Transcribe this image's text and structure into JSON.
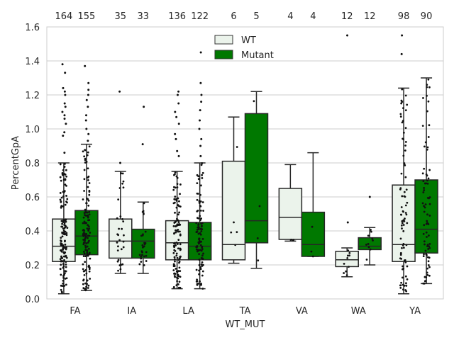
{
  "chart_data": {
    "type": "box",
    "xlabel": "WT_MUT",
    "ylabel": "PercentGpA",
    "ylim": [
      0,
      1.6
    ],
    "yticks": [
      "0.0",
      "0.2",
      "0.4",
      "0.6",
      "0.8",
      "1.0",
      "1.2",
      "1.4",
      "1.6"
    ],
    "grid": true,
    "legend_position": "top-center",
    "categories": [
      "FA",
      "IA",
      "LA",
      "TA",
      "VA",
      "WA",
      "YA"
    ],
    "series": [
      {
        "name": "WT",
        "color": "#ebf3eb",
        "counts": [
          "164",
          "35",
          "136",
          "6",
          "4",
          "12",
          "98"
        ],
        "boxes": [
          {
            "q1": 0.22,
            "median": 0.31,
            "q3": 0.47,
            "whislo": 0.03,
            "whishi": 0.8,
            "fliers": [
              0.86,
              0.96,
              0.98,
              1.03,
              1.06,
              1.08,
              1.1,
              1.13,
              1.15,
              1.2,
              1.22,
              1.24,
              1.33,
              1.38
            ]
          },
          {
            "q1": 0.24,
            "median": 0.34,
            "q3": 0.47,
            "whislo": 0.15,
            "whishi": 0.75,
            "fliers": [
              0.8,
              1.22
            ]
          },
          {
            "q1": 0.23,
            "median": 0.33,
            "q3": 0.46,
            "whislo": 0.06,
            "whishi": 0.75,
            "fliers": [
              0.84,
              0.87,
              0.94,
              0.97,
              1.03,
              1.07,
              1.1,
              1.15,
              1.2,
              1.22
            ]
          },
          {
            "q1": 0.23,
            "median": 0.32,
            "q3": 0.81,
            "whislo": 0.21,
            "whishi": 1.07,
            "fliers": []
          },
          {
            "q1": 0.35,
            "median": 0.48,
            "q3": 0.65,
            "whislo": 0.34,
            "whishi": 0.79,
            "fliers": []
          },
          {
            "q1": 0.19,
            "median": 0.23,
            "q3": 0.28,
            "whislo": 0.13,
            "whishi": 0.3,
            "fliers": [
              0.45,
              1.55
            ]
          },
          {
            "q1": 0.22,
            "median": 0.32,
            "q3": 0.67,
            "whislo": 0.03,
            "whishi": 1.24,
            "fliers": [
              1.44,
              1.55
            ]
          }
        ]
      },
      {
        "name": "Mutant",
        "color": "#007800",
        "counts": [
          "155",
          "33",
          "122",
          "5",
          "4",
          "12",
          "90"
        ],
        "boxes": [
          {
            "q1": 0.26,
            "median": 0.37,
            "q3": 0.52,
            "whislo": 0.05,
            "whishi": 0.91,
            "fliers": [
              0.93,
              0.97,
              1.0,
              1.05,
              1.08,
              1.13,
              1.17,
              1.2,
              1.23,
              1.27,
              1.37
            ]
          },
          {
            "q1": 0.24,
            "median": 0.34,
            "q3": 0.41,
            "whislo": 0.15,
            "whishi": 0.57,
            "fliers": [
              0.91,
              1.13
            ]
          },
          {
            "q1": 0.23,
            "median": 0.31,
            "q3": 0.45,
            "whislo": 0.06,
            "whishi": 0.8,
            "fliers": [
              0.84,
              0.9,
              0.94,
              1.0,
              1.05,
              1.11,
              1.16,
              1.2,
              1.27,
              1.45
            ]
          },
          {
            "q1": 0.33,
            "median": 0.46,
            "q3": 1.09,
            "whislo": 0.18,
            "whishi": 1.22,
            "fliers": []
          },
          {
            "q1": 0.25,
            "median": 0.32,
            "q3": 0.51,
            "whislo": 0.25,
            "whishi": 0.86,
            "fliers": []
          },
          {
            "q1": 0.29,
            "median": 0.31,
            "q3": 0.36,
            "whislo": 0.2,
            "whishi": 0.42,
            "fliers": [
              0.6
            ]
          },
          {
            "q1": 0.27,
            "median": 0.41,
            "q3": 0.7,
            "whislo": 0.09,
            "whishi": 1.3,
            "fliers": []
          }
        ]
      }
    ]
  }
}
